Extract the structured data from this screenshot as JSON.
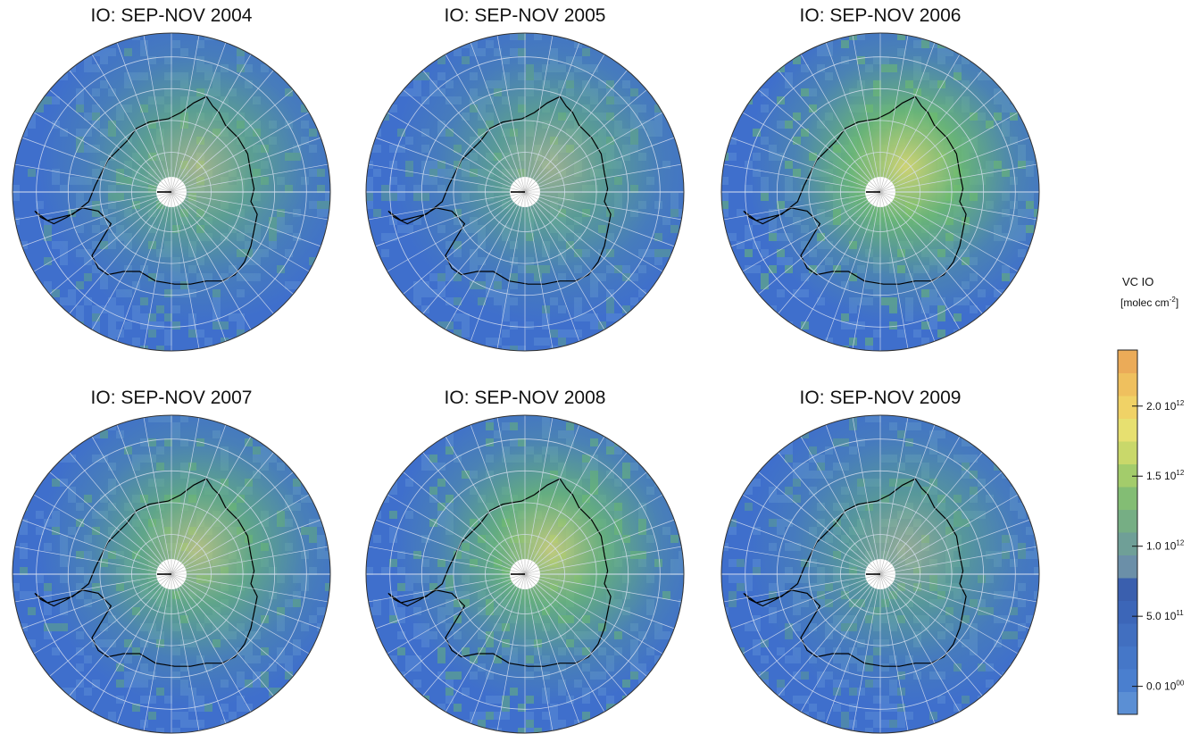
{
  "panels": [
    {
      "title": "IO: SEP-NOV 2004",
      "enhancement": 0.7
    },
    {
      "title": "IO: SEP-NOV 2005",
      "enhancement": 0.65
    },
    {
      "title": "IO: SEP-NOV 2006",
      "enhancement": 1.0
    },
    {
      "title": "IO: SEP-NOV 2007",
      "enhancement": 0.8
    },
    {
      "title": "IO: SEP-NOV 2008",
      "enhancement": 0.9
    },
    {
      "title": "IO: SEP-NOV 2009",
      "enhancement": 0.6
    }
  ],
  "colorbar": {
    "title": "VC IO",
    "unit_prefix": "[molec cm",
    "unit_exp": "-2",
    "unit_suffix": "]",
    "ticks": [
      {
        "mant": "0.0 10",
        "exp": "00",
        "value": 0.0
      },
      {
        "mant": "5.0 10",
        "exp": "11",
        "value": 500000000000.0
      },
      {
        "mant": "1.0 10",
        "exp": "12",
        "value": 1000000000000.0
      },
      {
        "mant": "1.5 10",
        "exp": "12",
        "value": 1500000000000.0
      },
      {
        "mant": "2.0 10",
        "exp": "12",
        "value": 2000000000000.0
      }
    ],
    "range": [
      -200000000000.0,
      2400000000000.0
    ],
    "colors": [
      "#5b8fd4",
      "#4a7fcf",
      "#4577c8",
      "#416fc0",
      "#3c66b8",
      "#3a5fae",
      "#6b8fa8",
      "#6f9f97",
      "#76ae84",
      "#83bd74",
      "#a3cc6b",
      "#c9d86a",
      "#e7e070",
      "#f0d266",
      "#efc05e",
      "#ebab58"
    ]
  },
  "map_colors": {
    "ocean": "#3f6fcc",
    "ocean_light": "#5a8ad6",
    "green": "#6fbf6a",
    "yellow": "#dede6a",
    "grid": "#d8e0f0",
    "coast": "#000000"
  }
}
